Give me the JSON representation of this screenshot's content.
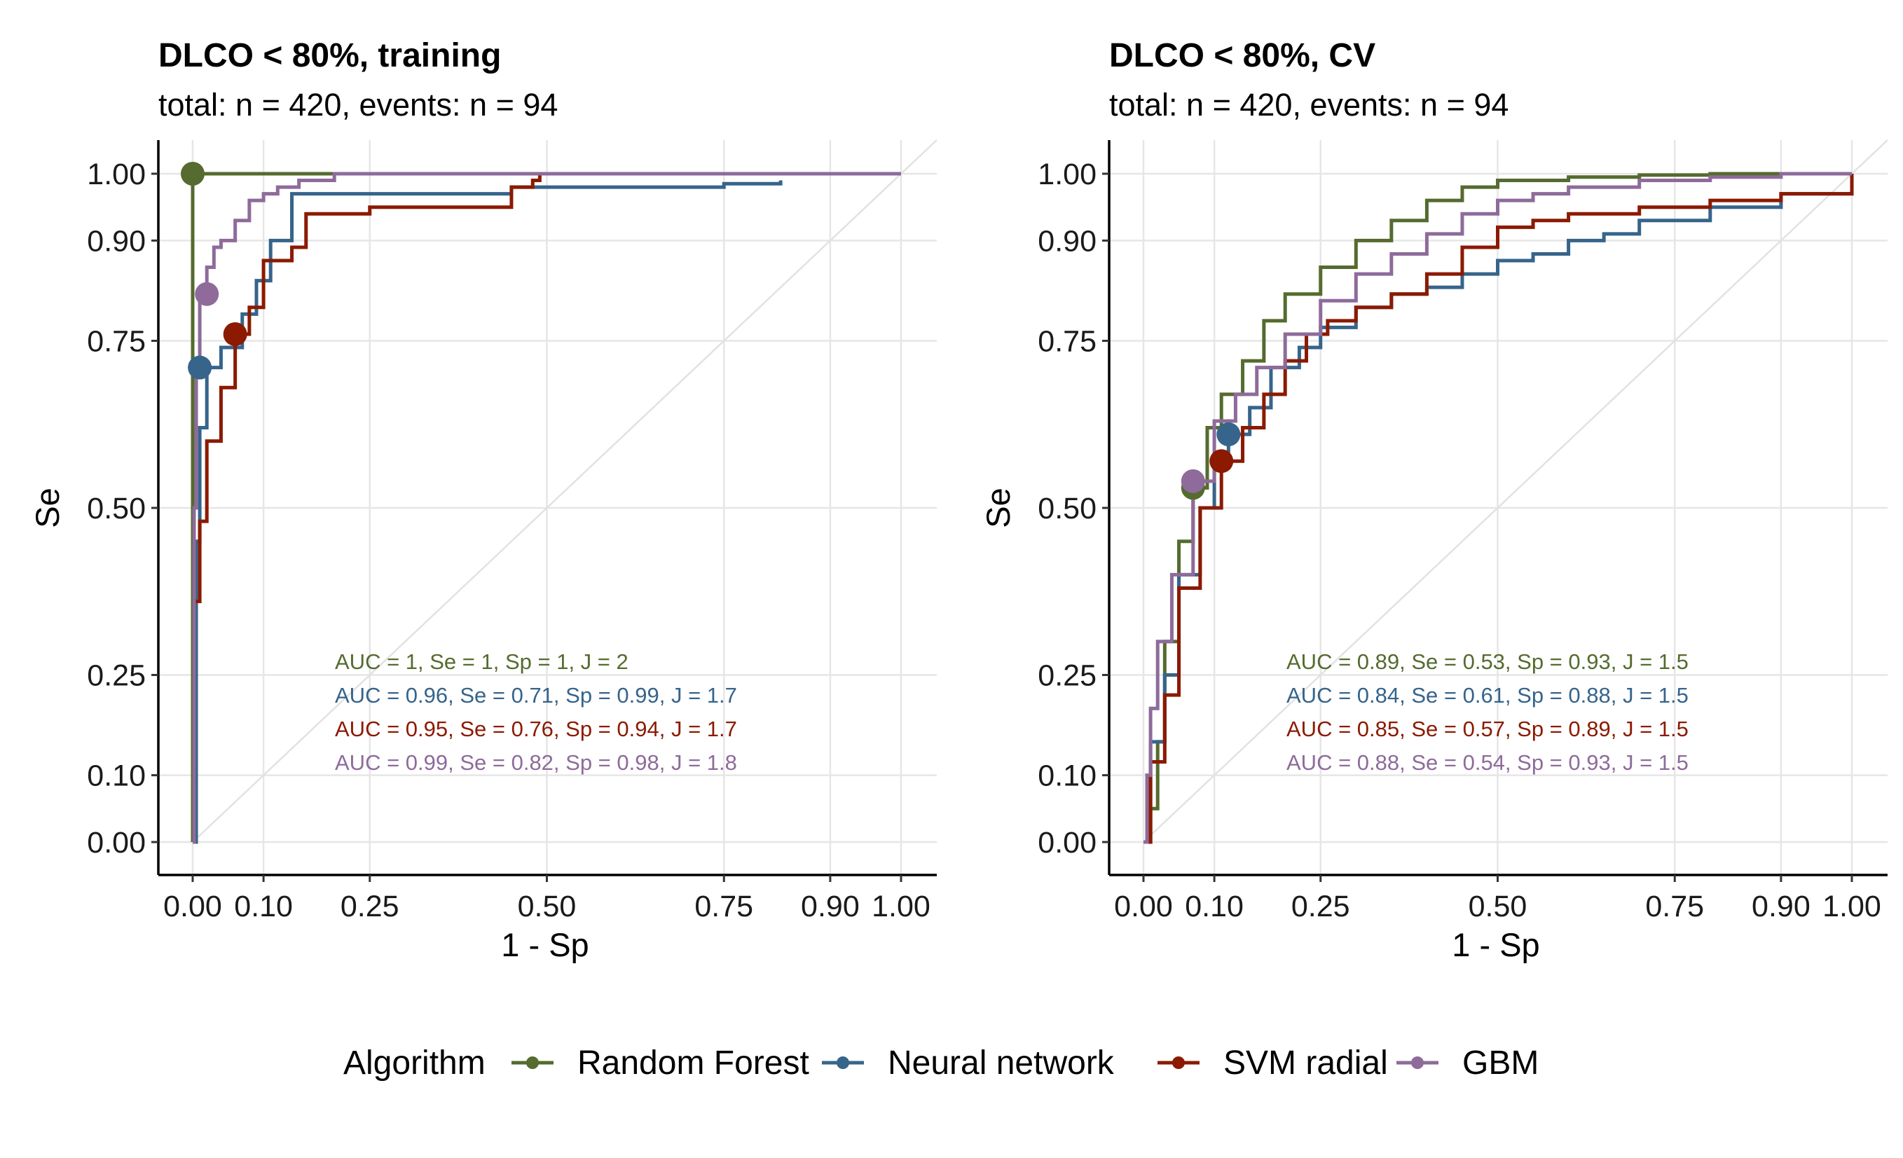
{
  "colors": {
    "Random Forest": "#556B2F",
    "Neural network": "#36648B",
    "SVM radial": "#8B1A00",
    "GBM": "#8E6B9B",
    "grid": "#E6E6E6",
    "diagonal": "#E2E2E2"
  },
  "legend": {
    "title": "Algorithm",
    "items": [
      "Random Forest",
      "Neural network",
      "SVM radial",
      "GBM"
    ]
  },
  "chart_data": [
    {
      "type": "line",
      "title": "DLCO < 80%, training",
      "subtitle": "total: n = 420, events: n = 94",
      "xlabel": "1 - Sp",
      "ylabel": "Se",
      "xlim": [
        0,
        1
      ],
      "ylim": [
        0,
        1
      ],
      "x_ticks": [
        "0.00",
        "0.10",
        "0.25",
        "0.50",
        "0.75",
        "0.90",
        "1.00"
      ],
      "y_ticks": [
        "0.00",
        "0.10",
        "0.25",
        "0.50",
        "0.75",
        "0.90",
        "1.00"
      ],
      "grid": true,
      "reference_line": "diagonal",
      "series": [
        {
          "name": "Random Forest",
          "x": [
            0,
            0,
            0.24
          ],
          "y": [
            0,
            1.0,
            1.0
          ],
          "cutoff": {
            "x": 0.0,
            "y": 1.0
          },
          "annotation": "AUC = 1, Se = 1, Sp = 1, J = 2"
        },
        {
          "name": "Neural network",
          "x": [
            0,
            0.005,
            0.01,
            0.02,
            0.04,
            0.07,
            0.09,
            0.11,
            0.14,
            0.2,
            0.3,
            0.45,
            0.6,
            0.75,
            0.83,
            0.83
          ],
          "y": [
            0,
            0.45,
            0.62,
            0.71,
            0.74,
            0.79,
            0.84,
            0.9,
            0.97,
            0.97,
            0.97,
            0.98,
            0.98,
            0.985,
            0.99,
            0.99
          ],
          "cutoff": {
            "x": 0.01,
            "y": 0.71
          },
          "annotation": "AUC = 0.96, Se = 0.71, Sp = 0.99, J = 1.7"
        },
        {
          "name": "SVM radial",
          "x": [
            0,
            0.002,
            0.01,
            0.02,
            0.04,
            0.06,
            0.08,
            0.1,
            0.12,
            0.14,
            0.16,
            0.2,
            0.25,
            0.3,
            0.35,
            0.4,
            0.44,
            0.45,
            0.48,
            0.49
          ],
          "y": [
            0,
            0.36,
            0.48,
            0.6,
            0.68,
            0.76,
            0.8,
            0.87,
            0.87,
            0.89,
            0.94,
            0.94,
            0.95,
            0.95,
            0.95,
            0.95,
            0.95,
            0.98,
            0.99,
            1.0
          ],
          "cutoff": {
            "x": 0.06,
            "y": 0.76
          },
          "annotation": "AUC = 0.95, Se = 0.76, Sp = 0.94, J = 1.7"
        },
        {
          "name": "GBM",
          "x": [
            0,
            0.002,
            0.005,
            0.01,
            0.02,
            0.03,
            0.04,
            0.06,
            0.08,
            0.1,
            0.12,
            0.15,
            0.2,
            0.3,
            0.5,
            0.75,
            1.0
          ],
          "y": [
            0,
            0.5,
            0.7,
            0.82,
            0.86,
            0.89,
            0.9,
            0.93,
            0.96,
            0.97,
            0.98,
            0.99,
            1.0,
            1.0,
            1.0,
            1.0,
            1.0
          ],
          "cutoff": {
            "x": 0.02,
            "y": 0.82
          },
          "annotation": "AUC = 0.99, Se = 0.82, Sp = 0.98, J = 1.8"
        }
      ]
    },
    {
      "type": "line",
      "title": "DLCO < 80%, CV",
      "subtitle": "total: n = 420, events: n = 94",
      "xlabel": "1 - Sp",
      "ylabel": "Se",
      "xlim": [
        0,
        1
      ],
      "ylim": [
        0,
        1
      ],
      "x_ticks": [
        "0.00",
        "0.10",
        "0.25",
        "0.50",
        "0.75",
        "0.90",
        "1.00"
      ],
      "y_ticks": [
        "0.00",
        "0.10",
        "0.25",
        "0.50",
        "0.75",
        "0.90",
        "1.00"
      ],
      "grid": true,
      "reference_line": "diagonal",
      "series": [
        {
          "name": "Random Forest",
          "x": [
            0,
            0.01,
            0.02,
            0.03,
            0.05,
            0.07,
            0.09,
            0.11,
            0.14,
            0.17,
            0.2,
            0.25,
            0.3,
            0.35,
            0.4,
            0.45,
            0.5,
            0.6,
            0.7,
            0.8,
            0.9,
            1.0
          ],
          "y": [
            0,
            0.05,
            0.15,
            0.3,
            0.45,
            0.53,
            0.62,
            0.67,
            0.72,
            0.78,
            0.82,
            0.86,
            0.9,
            0.93,
            0.96,
            0.98,
            0.99,
            0.995,
            0.998,
            1.0,
            1.0,
            1.0
          ],
          "cutoff": {
            "x": 0.07,
            "y": 0.53
          },
          "annotation": "AUC = 0.89, Se = 0.53, Sp = 0.93, J = 1.5"
        },
        {
          "name": "Neural network",
          "x": [
            0,
            0.01,
            0.03,
            0.05,
            0.08,
            0.1,
            0.12,
            0.15,
            0.18,
            0.22,
            0.25,
            0.3,
            0.35,
            0.4,
            0.45,
            0.5,
            0.55,
            0.6,
            0.65,
            0.7,
            0.8,
            0.9,
            1.0
          ],
          "y": [
            0,
            0.15,
            0.25,
            0.4,
            0.5,
            0.56,
            0.61,
            0.65,
            0.71,
            0.74,
            0.77,
            0.8,
            0.82,
            0.83,
            0.85,
            0.87,
            0.88,
            0.9,
            0.91,
            0.93,
            0.95,
            0.97,
            1.0
          ],
          "cutoff": {
            "x": 0.12,
            "y": 0.61
          },
          "annotation": "AUC = 0.84, Se = 0.61, Sp = 0.88, J = 1.5"
        },
        {
          "name": "SVM radial",
          "x": [
            0,
            0.01,
            0.03,
            0.05,
            0.08,
            0.11,
            0.14,
            0.17,
            0.2,
            0.23,
            0.26,
            0.3,
            0.35,
            0.4,
            0.45,
            0.5,
            0.55,
            0.6,
            0.7,
            0.8,
            0.9,
            1.0
          ],
          "y": [
            0,
            0.12,
            0.22,
            0.38,
            0.5,
            0.57,
            0.62,
            0.67,
            0.72,
            0.76,
            0.78,
            0.8,
            0.82,
            0.85,
            0.89,
            0.92,
            0.93,
            0.94,
            0.95,
            0.96,
            0.97,
            1.0
          ],
          "cutoff": {
            "x": 0.11,
            "y": 0.57
          },
          "annotation": "AUC = 0.85, Se = 0.57, Sp = 0.89, J = 1.5"
        },
        {
          "name": "GBM",
          "x": [
            0,
            0.005,
            0.01,
            0.02,
            0.04,
            0.07,
            0.1,
            0.13,
            0.16,
            0.2,
            0.25,
            0.3,
            0.35,
            0.4,
            0.45,
            0.5,
            0.55,
            0.6,
            0.7,
            0.8,
            0.9,
            1.0
          ],
          "y": [
            0,
            0.1,
            0.2,
            0.3,
            0.4,
            0.54,
            0.63,
            0.67,
            0.71,
            0.76,
            0.81,
            0.85,
            0.88,
            0.91,
            0.94,
            0.96,
            0.97,
            0.98,
            0.99,
            0.995,
            1.0,
            1.0
          ],
          "cutoff": {
            "x": 0.07,
            "y": 0.54
          },
          "annotation": "AUC = 0.88, Se = 0.54, Sp = 0.93, J = 1.5"
        }
      ]
    }
  ]
}
